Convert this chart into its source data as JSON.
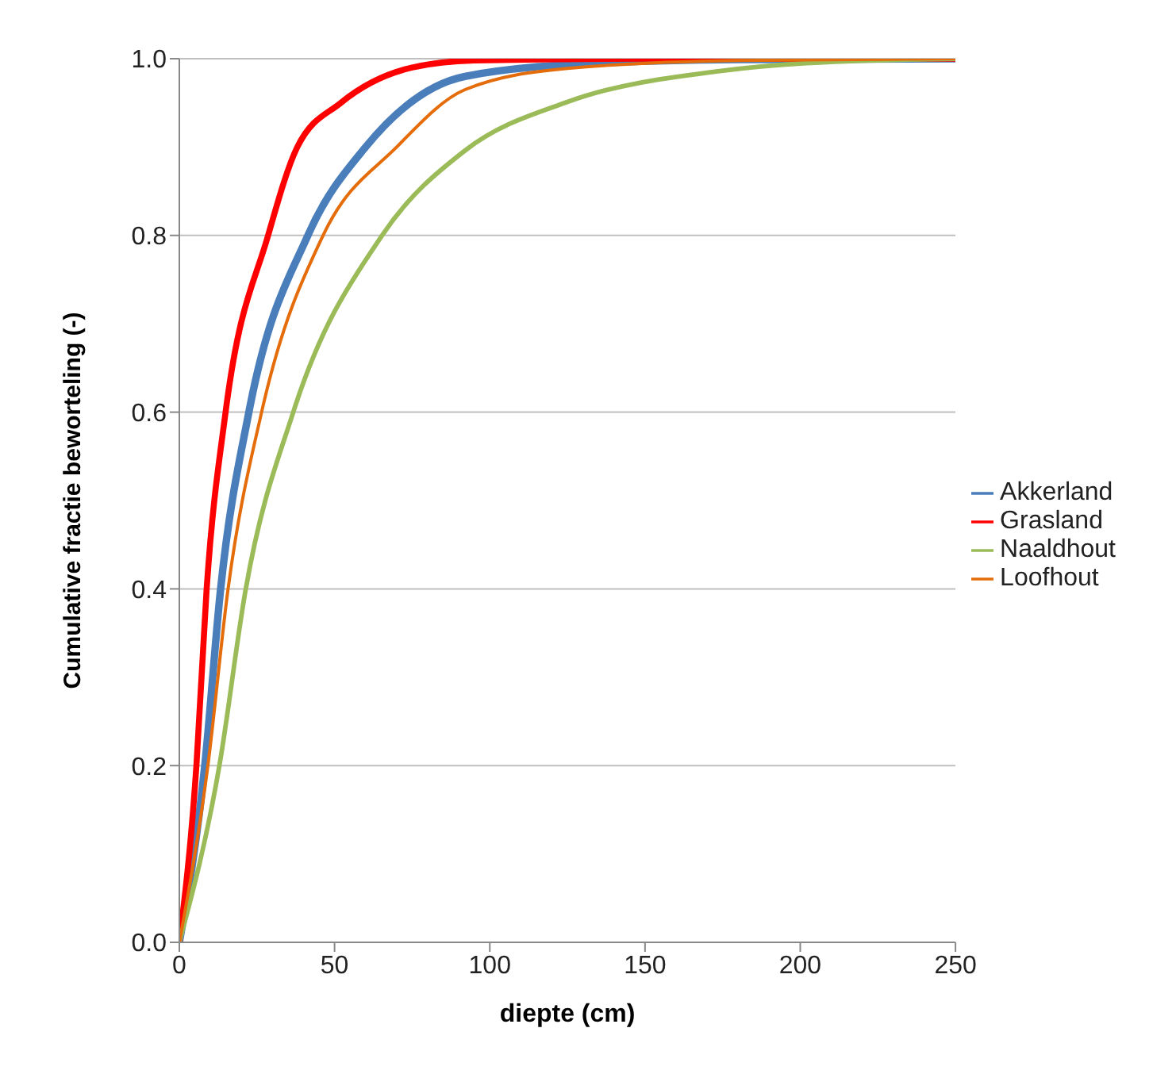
{
  "chart_data": {
    "type": "line",
    "xlabel": "diepte (cm)",
    "ylabel": "Cumulative fractie beworteling (-)",
    "xlim": [
      0,
      250
    ],
    "xticks": [
      0,
      50,
      100,
      150,
      200,
      250
    ],
    "ylim": [
      0,
      1
    ],
    "yticks": [
      {
        "value": 0,
        "label": "0.0"
      },
      {
        "value": 0.2,
        "label": "0.2"
      },
      {
        "value": 0.4,
        "label": "0.4"
      },
      {
        "value": 0.6,
        "label": "0.6"
      },
      {
        "value": 0.8,
        "label": "0.8"
      },
      {
        "value": 1,
        "label": "1.0"
      }
    ],
    "grid": "y",
    "legend": "right",
    "marker": "none",
    "line_style": "solid",
    "series": [
      {
        "name": "Akkerland",
        "color": "#4a7ebb",
        "x": [
          0,
          8.2,
          13.3,
          22.4,
          41.4,
          60,
          92,
          135,
          180,
          250
        ],
        "values": [
          0,
          0.2,
          0.4,
          0.6,
          0.8,
          0.9,
          0.98,
          0.995,
          0.999,
          1
        ]
      },
      {
        "name": "Grasland",
        "color": "#ff0000",
        "x": [
          0,
          5.5,
          8.8,
          14.9,
          28.6,
          38,
          52,
          75,
          95,
          150,
          250
        ],
        "values": [
          0,
          0.2,
          0.4,
          0.6,
          0.8,
          0.9,
          0.95,
          0.99,
          0.998,
          1,
          1
        ]
      },
      {
        "name": "Naaldhout",
        "color": "#9bbb59",
        "x": [
          0,
          12.9,
          21.4,
          36.7,
          65.3,
          92,
          125,
          174,
          202,
          250
        ],
        "values": [
          0,
          0.2,
          0.4,
          0.6,
          0.8,
          0.896,
          0.951,
          0.986,
          0.995,
          1
        ]
      },
      {
        "name": "Loofhout",
        "color": "#e46c0a",
        "x": [
          0,
          9.2,
          15.7,
          26.5,
          46.3,
          70,
          92,
          125,
          180,
          250
        ],
        "values": [
          0,
          0.2,
          0.4,
          0.6,
          0.8,
          0.9,
          0.965,
          0.989,
          0.998,
          1
        ]
      }
    ]
  }
}
